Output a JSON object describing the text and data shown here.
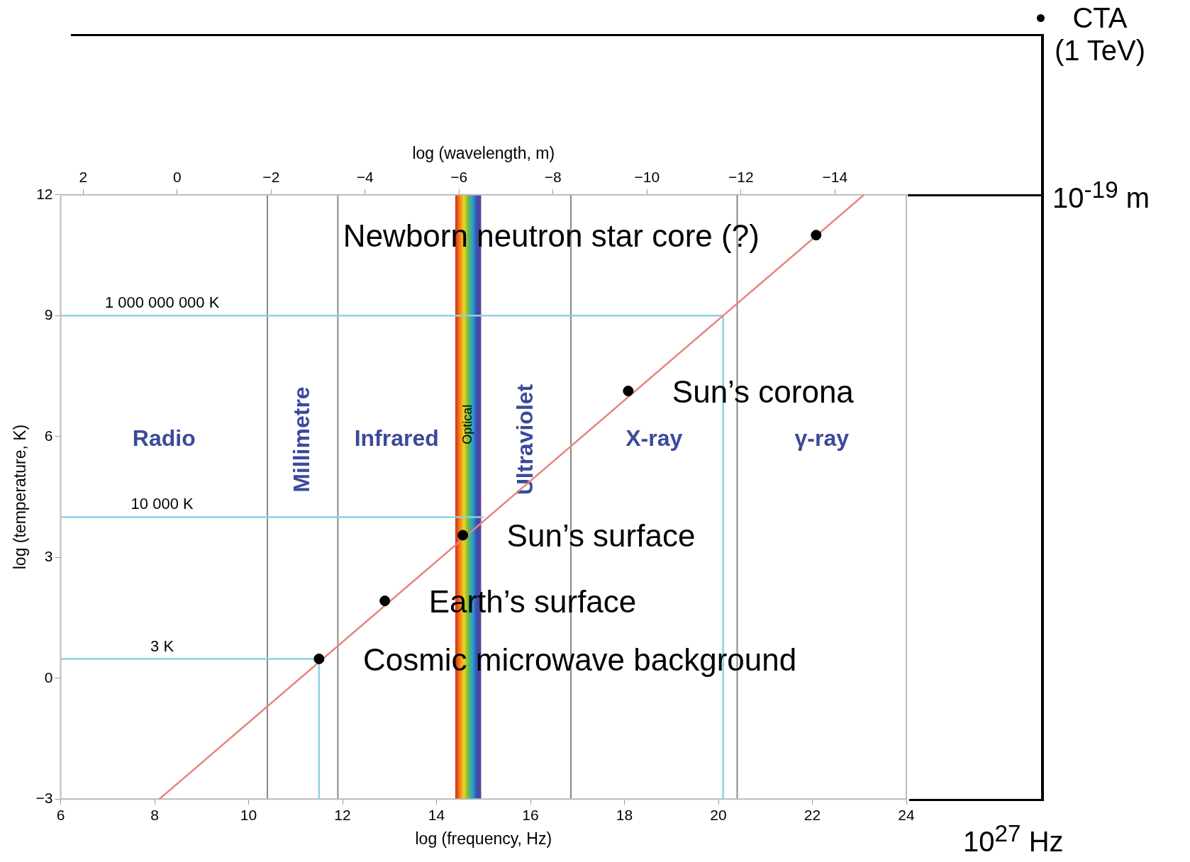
{
  "chart_data": {
    "type": "scatter",
    "xlabel": "log (frequency, Hz)",
    "ylabel": "log (temperature, K)",
    "x2label": "log (wavelength, m)",
    "xlim": [
      6,
      24
    ],
    "xticks": [
      6,
      8,
      10,
      12,
      14,
      16,
      18,
      20,
      22,
      24
    ],
    "ylim": [
      -3,
      12
    ],
    "yticks": [
      -3,
      0,
      3,
      6,
      9,
      12
    ],
    "x2lim": [
      2.48,
      -15.52
    ],
    "x2ticks": [
      2,
      0,
      -2,
      -4,
      -6,
      -8,
      -10,
      -12,
      -14
    ],
    "grid": false,
    "legend": false,
    "marker": "circle",
    "series": [
      {
        "type": "line",
        "marker": "none",
        "color": "#e8837f",
        "x": [
          8.1,
          23.1
        ],
        "values": [
          -3,
          12
        ]
      },
      {
        "type": "line",
        "marker": "none",
        "name": "1 000 000 000 K",
        "color": "#8fd0e6",
        "x": [
          6,
          20.1,
          20.1
        ],
        "values": [
          9,
          9,
          -3
        ]
      },
      {
        "type": "line",
        "marker": "none",
        "name": "10 000 K",
        "color": "#8fd0e6",
        "x": [
          6,
          15.0
        ],
        "values": [
          4,
          4
        ]
      },
      {
        "type": "line",
        "marker": "none",
        "name": "3 K",
        "color": "#8fd0e6",
        "x": [
          6,
          11.5,
          11.5
        ],
        "values": [
          0.48,
          0.48,
          -3
        ]
      },
      {
        "type": "scatter",
        "color": "#000000",
        "x": [
          11.5,
          12.9,
          14.56,
          18.08,
          22.08
        ],
        "values": [
          0.48,
          1.92,
          3.55,
          7.13,
          11.0
        ]
      }
    ],
    "bands": [
      {
        "axis": "x",
        "from": 14.4,
        "to": 14.95,
        "label": "Optical"
      }
    ],
    "ref_lines": [
      {
        "axis": "x",
        "value": 10.4
      },
      {
        "axis": "x",
        "value": 11.9
      },
      {
        "axis": "x",
        "value": 16.86
      },
      {
        "axis": "x",
        "value": 20.4
      }
    ],
    "annotations": [
      "Radio",
      "Millimetre",
      "Infrared",
      "Ultraviolet",
      "X-ray",
      "γ-ray",
      {
        "text": "Cosmic microwave background",
        "x": 11.5,
        "y": 0.48
      },
      {
        "text": "Earth’s surface",
        "x": 12.9,
        "y": 1.92
      },
      {
        "text": "Sun’s surface",
        "x": 14.56,
        "y": 3.55
      },
      {
        "text": "Sun’s corona",
        "x": 18.08,
        "y": 7.13
      },
      {
        "text": "Newborn neutron star core (?)",
        "x": 22.08,
        "y": 11.0
      },
      "CTA (1 TeV)",
      "10$^{-19}$ m",
      "10$^{27}$ Hz"
    ]
  }
}
